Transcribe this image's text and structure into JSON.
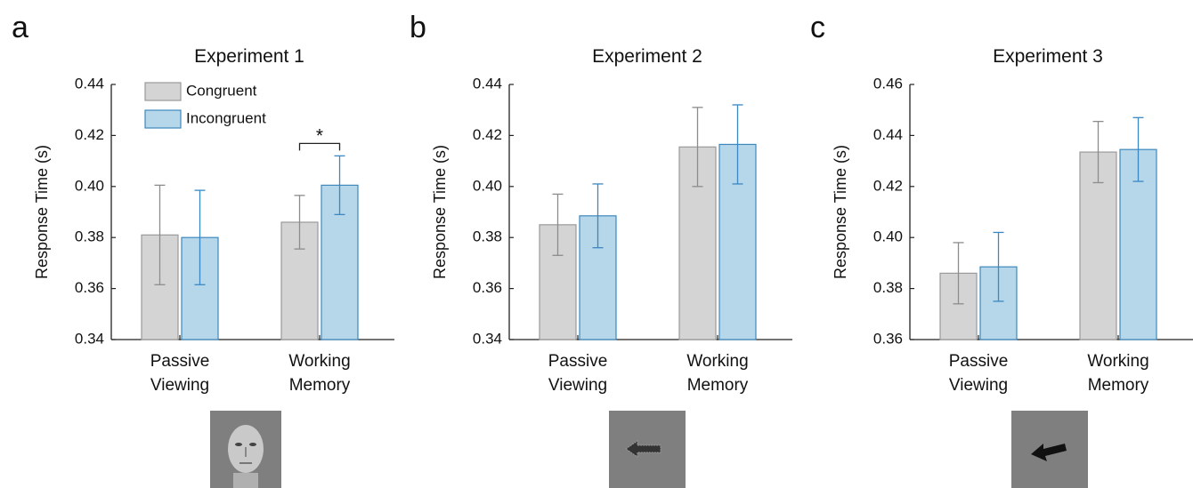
{
  "chart_data": [
    {
      "type": "bar",
      "panel_label": "a",
      "title": "Experiment 1",
      "y_label": "Response Time (s)",
      "categories": [
        "Passive Viewing",
        "Working Memory"
      ],
      "series": [
        {
          "name": "Congruent",
          "color": "#d4d4d5",
          "edge": "#9a9a9a",
          "error_color": "#8c8c8c",
          "values": [
            0.381,
            0.386
          ],
          "errors": [
            0.0195,
            0.0105
          ]
        },
        {
          "name": "Incongruent",
          "color": "#b6d6e9",
          "edge": "#3d88bd",
          "error_color": "#3b88c3",
          "values": [
            0.38,
            0.4005
          ],
          "errors": [
            0.0185,
            0.0115
          ]
        }
      ],
      "ylim": [
        0.34,
        0.44
      ],
      "yticks": [
        0.34,
        0.36,
        0.38,
        {
          "value": 0.4,
          "label": "0.40"
        },
        0.42,
        0.44
      ],
      "legend": "upper left",
      "annotation": "*"
    },
    {
      "type": "bar",
      "panel_label": "b",
      "title": "Experiment 2",
      "y_label": "Response Time (s)",
      "categories": [
        "Passive Viewing",
        "Working Memory"
      ],
      "series": [
        {
          "name": "Congruent",
          "color": "#d4d4d5",
          "edge": "#9a9a9a",
          "error_color": "#8c8c8c",
          "values": [
            0.385,
            0.4155
          ],
          "errors": [
            0.012,
            0.0155
          ]
        },
        {
          "name": "Incongruent",
          "color": "#b6d6e9",
          "edge": "#3d88bd",
          "error_color": "#3b88c3",
          "values": [
            0.3885,
            0.4165
          ],
          "errors": [
            0.0125,
            0.0155
          ]
        }
      ],
      "ylim": [
        0.34,
        0.44
      ],
      "yticks": [
        0.34,
        0.36,
        0.38,
        {
          "value": 0.4,
          "label": "0.40"
        },
        0.42,
        0.44
      ]
    },
    {
      "type": "bar",
      "panel_label": "c",
      "title": "Experiment 3",
      "y_label": "Response Time (s)",
      "categories": [
        "Passive Viewing",
        "Working Memory"
      ],
      "series": [
        {
          "name": "Congruent",
          "color": "#d4d4d5",
          "edge": "#9a9a9a",
          "error_color": "#8c8c8c",
          "values": [
            0.386,
            0.4335
          ],
          "errors": [
            0.012,
            0.012
          ]
        },
        {
          "name": "Incongruent",
          "color": "#b6d6e9",
          "edge": "#3d88bd",
          "error_color": "#3b88c3",
          "values": [
            0.3885,
            0.4345
          ],
          "errors": [
            0.0135,
            0.0125
          ]
        }
      ],
      "ylim": [
        0.36,
        0.46
      ],
      "yticks": [
        0.36,
        0.38,
        {
          "value": 0.4,
          "label": "0.40"
        },
        0.42,
        0.44,
        0.46
      ]
    }
  ]
}
